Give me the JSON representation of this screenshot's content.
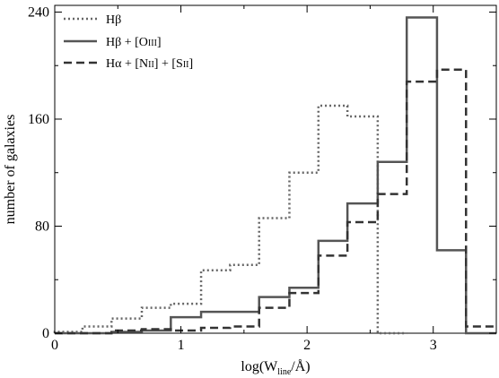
{
  "chart_data": {
    "type": "line",
    "xlabel": "log(W_line/Å)",
    "xlabel_parts": {
      "prefix": "log(W",
      "sub": "line",
      "suffix": "/Å)"
    },
    "ylabel": "number of galaxies",
    "xlim": [
      0,
      3.5
    ],
    "ylim": [
      0,
      245
    ],
    "xticks": [
      0,
      1,
      2,
      3
    ],
    "yticks": [
      0,
      80,
      160,
      240
    ],
    "grid": false,
    "legend_position": "top-left",
    "series": [
      {
        "name": "Hβ",
        "style": "dotted",
        "color": "#666666",
        "bin_edges": [
          0.0,
          0.22,
          0.45,
          0.69,
          0.92,
          1.16,
          1.39,
          1.62,
          1.86,
          2.09,
          2.32,
          2.56,
          2.79
        ],
        "values": [
          1,
          5,
          11,
          19,
          22,
          47,
          51,
          86,
          120,
          170,
          162,
          0
        ]
      },
      {
        "name": "Hβ + [O III]",
        "style": "solid",
        "color": "#555555",
        "bin_edges": [
          0.0,
          0.22,
          0.45,
          0.69,
          0.92,
          1.16,
          1.39,
          1.62,
          1.86,
          2.09,
          2.32,
          2.56,
          2.79,
          3.03,
          3.26,
          3.5
        ],
        "values": [
          0,
          0,
          1,
          2,
          12,
          16,
          16,
          27,
          34,
          69,
          97,
          128,
          236,
          62,
          0
        ]
      },
      {
        "name": "Hα + [N II] + [S II]",
        "style": "dashed",
        "color": "#333333",
        "bin_edges": [
          0.0,
          0.22,
          0.45,
          0.69,
          0.92,
          1.16,
          1.39,
          1.62,
          1.86,
          2.09,
          2.32,
          2.56,
          2.79,
          3.03,
          3.26,
          3.5
        ],
        "values": [
          0,
          0,
          2,
          3,
          2,
          4,
          5,
          19,
          30,
          58,
          83,
          104,
          188,
          197,
          5
        ]
      }
    ]
  },
  "legend": {
    "items": [
      {
        "main": "Hβ",
        "style": "dotted"
      },
      {
        "main": "Hβ + [O",
        "roman": "III",
        "close": "]",
        "style": "solid"
      },
      {
        "main": "Hα + [N",
        "roman": "II",
        "middle": "] + [S",
        "roman2": "II",
        "close": "]",
        "style": "dashed"
      }
    ]
  }
}
